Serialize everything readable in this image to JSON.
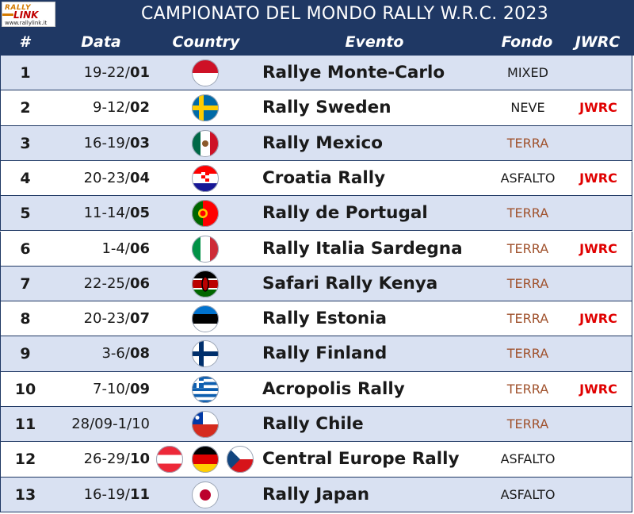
{
  "logo": {
    "line1": "RALLY",
    "line2": "LINK",
    "url": "www.rallylink.it"
  },
  "title": "CAMPIONATO DEL MONDO RALLY W.R.C. 2023",
  "headers": {
    "num": "#",
    "date": "Data",
    "country": "Country",
    "event": "Evento",
    "surface": "Fondo",
    "jwrc": "JWRC"
  },
  "colors": {
    "header_bg": "#1f3864",
    "alt_row": "#d9e1f2",
    "terra": "#a0522d",
    "jwrc": "#e00000"
  },
  "rows": [
    {
      "num": "1",
      "days": "19-22/",
      "month": "01",
      "flags": [
        "monaco"
      ],
      "event": "Rallye Monte-Carlo",
      "surface": "MIXED",
      "jwrc": ""
    },
    {
      "num": "2",
      "days": "9-12/",
      "month": "02",
      "flags": [
        "sweden"
      ],
      "event": "Rally Sweden",
      "surface": "NEVE",
      "jwrc": "JWRC"
    },
    {
      "num": "3",
      "days": "16-19/",
      "month": "03",
      "flags": [
        "mexico"
      ],
      "event": "Rally Mexico",
      "surface": "TERRA",
      "jwrc": ""
    },
    {
      "num": "4",
      "days": "20-23/",
      "month": "04",
      "flags": [
        "croatia"
      ],
      "event": "Croatia Rally",
      "surface": "ASFALTO",
      "jwrc": "JWRC"
    },
    {
      "num": "5",
      "days": "11-14/",
      "month": "05",
      "flags": [
        "portugal"
      ],
      "event": "Rally de Portugal",
      "surface": "TERRA",
      "jwrc": ""
    },
    {
      "num": "6",
      "days": "1-4/",
      "month": "06",
      "flags": [
        "italy"
      ],
      "event": "Rally Italia Sardegna",
      "surface": "TERRA",
      "jwrc": "JWRC"
    },
    {
      "num": "7",
      "days": "22-25/",
      "month": "06",
      "flags": [
        "kenya"
      ],
      "event": "Safari Rally Kenya",
      "surface": "TERRA",
      "jwrc": ""
    },
    {
      "num": "8",
      "days": "20-23/",
      "month": "07",
      "flags": [
        "estonia"
      ],
      "event": "Rally Estonia",
      "surface": "TERRA",
      "jwrc": "JWRC"
    },
    {
      "num": "9",
      "days": "3-6/",
      "month": "08",
      "flags": [
        "finland"
      ],
      "event": "Rally Finland",
      "surface": "TERRA",
      "jwrc": ""
    },
    {
      "num": "10",
      "days": "7-10/",
      "month": "09",
      "flags": [
        "greece"
      ],
      "event": "Acropolis Rally",
      "surface": "TERRA",
      "jwrc": "JWRC"
    },
    {
      "num": "11",
      "days": "28/09-1/10",
      "month": "",
      "flags": [
        "chile"
      ],
      "event": "Rally Chile",
      "surface": "TERRA",
      "jwrc": ""
    },
    {
      "num": "12",
      "days": "26-29/",
      "month": "10",
      "flags": [
        "austria",
        "germany",
        "czechia"
      ],
      "event": "Central Europe Rally",
      "surface": "ASFALTO",
      "jwrc": ""
    },
    {
      "num": "13",
      "days": "16-19/",
      "month": "11",
      "flags": [
        "japan"
      ],
      "event": "Rally Japan",
      "surface": "ASFALTO",
      "jwrc": ""
    }
  ]
}
